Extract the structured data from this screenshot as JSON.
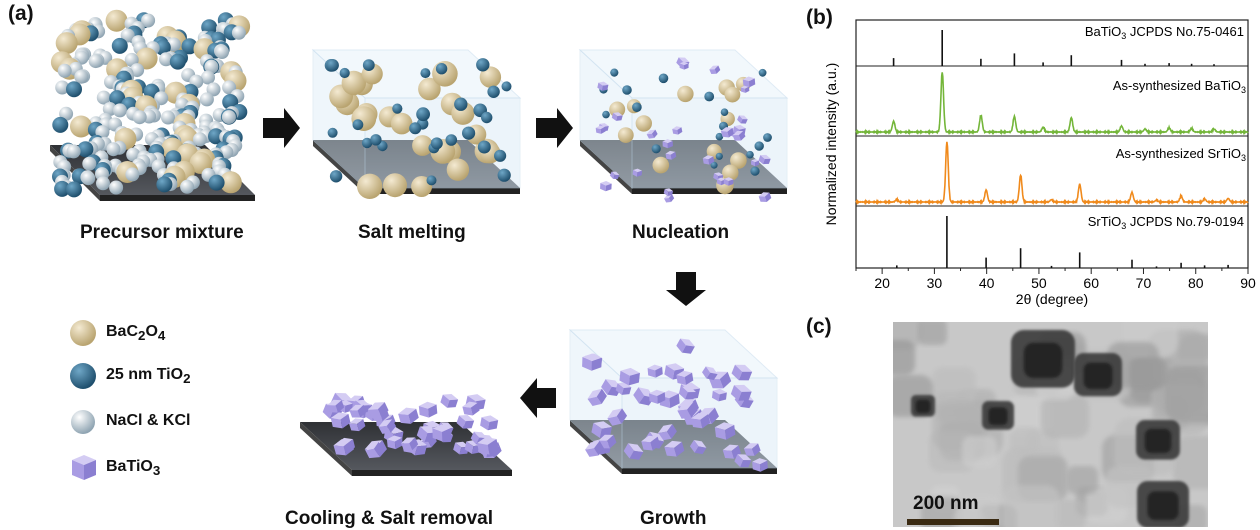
{
  "panels": {
    "a": "(a)",
    "b": "(b)",
    "c": "(c)"
  },
  "steps": {
    "precursor": "Precursor mixture",
    "melting": "Salt melting",
    "nucleation": "Nucleation",
    "growth": "Growth",
    "cooling": "Cooling & Salt removal"
  },
  "legend": [
    {
      "label_main": "BaC",
      "sub1": "2",
      "mid": "O",
      "sub2": "4",
      "icon": "beige-sphere-icon",
      "color": "#d8c79c"
    },
    {
      "label_main": "25 nm TiO",
      "sub1": "2",
      "mid": "",
      "sub2": "",
      "icon": "blue-sphere-icon",
      "color": "#2f6e94"
    },
    {
      "label_main": "NaCl & KCl",
      "sub1": "",
      "mid": "",
      "sub2": "",
      "icon": "white-sphere-icon",
      "color": "#c7d3dc"
    },
    {
      "label_main": "BaTiO",
      "sub1": "3",
      "mid": "",
      "sub2": "",
      "icon": "purple-cube-icon",
      "color": "#a79be0"
    }
  ],
  "colors": {
    "green_trace": "#74b63a",
    "orange_trace": "#f08a1c",
    "arrow": "#111111",
    "box_fill": "#dcecf8",
    "floor": "#3d3f43"
  },
  "chart_data": {
    "type": "line",
    "xlabel": "2θ (degree)",
    "ylabel": "Normalized intensity (a.u.)",
    "xlim": [
      15,
      90
    ],
    "xticks": [
      "20",
      "30",
      "40",
      "50",
      "60",
      "70",
      "80",
      "90"
    ],
    "series": [
      {
        "name": "BaTiO3 JCPDS No.75-0461",
        "label_main": "BaTiO",
        "label_sub": "3",
        "label_tail": " JCPDS No.75-0461",
        "kind": "sticks",
        "x": [
          22.2,
          31.5,
          38.9,
          45.3,
          50.8,
          56.2,
          65.8,
          70.3,
          74.9,
          79.2,
          83.5
        ],
        "y": [
          0.22,
          1.0,
          0.2,
          0.35,
          0.1,
          0.3,
          0.17,
          0.06,
          0.08,
          0.06,
          0.05
        ]
      },
      {
        "name": "As-synthesized BaTiO3",
        "label_main": "As-synthesized BaTiO",
        "label_sub": "3",
        "label_tail": "",
        "kind": "line",
        "x": [
          22.2,
          31.5,
          38.9,
          45.3,
          50.8,
          56.2,
          65.8,
          70.3,
          74.9,
          79.2,
          83.5
        ],
        "y": [
          0.18,
          1.0,
          0.28,
          0.26,
          0.08,
          0.24,
          0.1,
          0.05,
          0.07,
          0.06,
          0.05
        ]
      },
      {
        "name": "As-synthesized SrTiO3",
        "label_main": "As-synthesized SrTiO",
        "label_sub": "3",
        "label_tail": "",
        "kind": "line",
        "x": [
          22.8,
          32.4,
          39.9,
          46.5,
          52.4,
          57.8,
          67.8,
          72.5,
          77.2,
          81.7,
          86.2
        ],
        "y": [
          0.04,
          1.0,
          0.2,
          0.45,
          0.04,
          0.3,
          0.16,
          0.03,
          0.1,
          0.05,
          0.06
        ]
      },
      {
        "name": "SrTiO3 JCPDS No.79-0194",
        "label_main": "SrTiO",
        "label_sub": "3",
        "label_tail": " JCPDS No.79-0194",
        "kind": "sticks",
        "x": [
          22.8,
          32.4,
          39.9,
          46.5,
          52.4,
          57.8,
          67.8,
          72.5,
          77.2,
          81.7,
          86.2
        ],
        "y": [
          0.05,
          1.0,
          0.2,
          0.38,
          0.04,
          0.3,
          0.16,
          0.03,
          0.1,
          0.05,
          0.06
        ]
      }
    ]
  },
  "tem": {
    "scalebar": "200 nm"
  }
}
